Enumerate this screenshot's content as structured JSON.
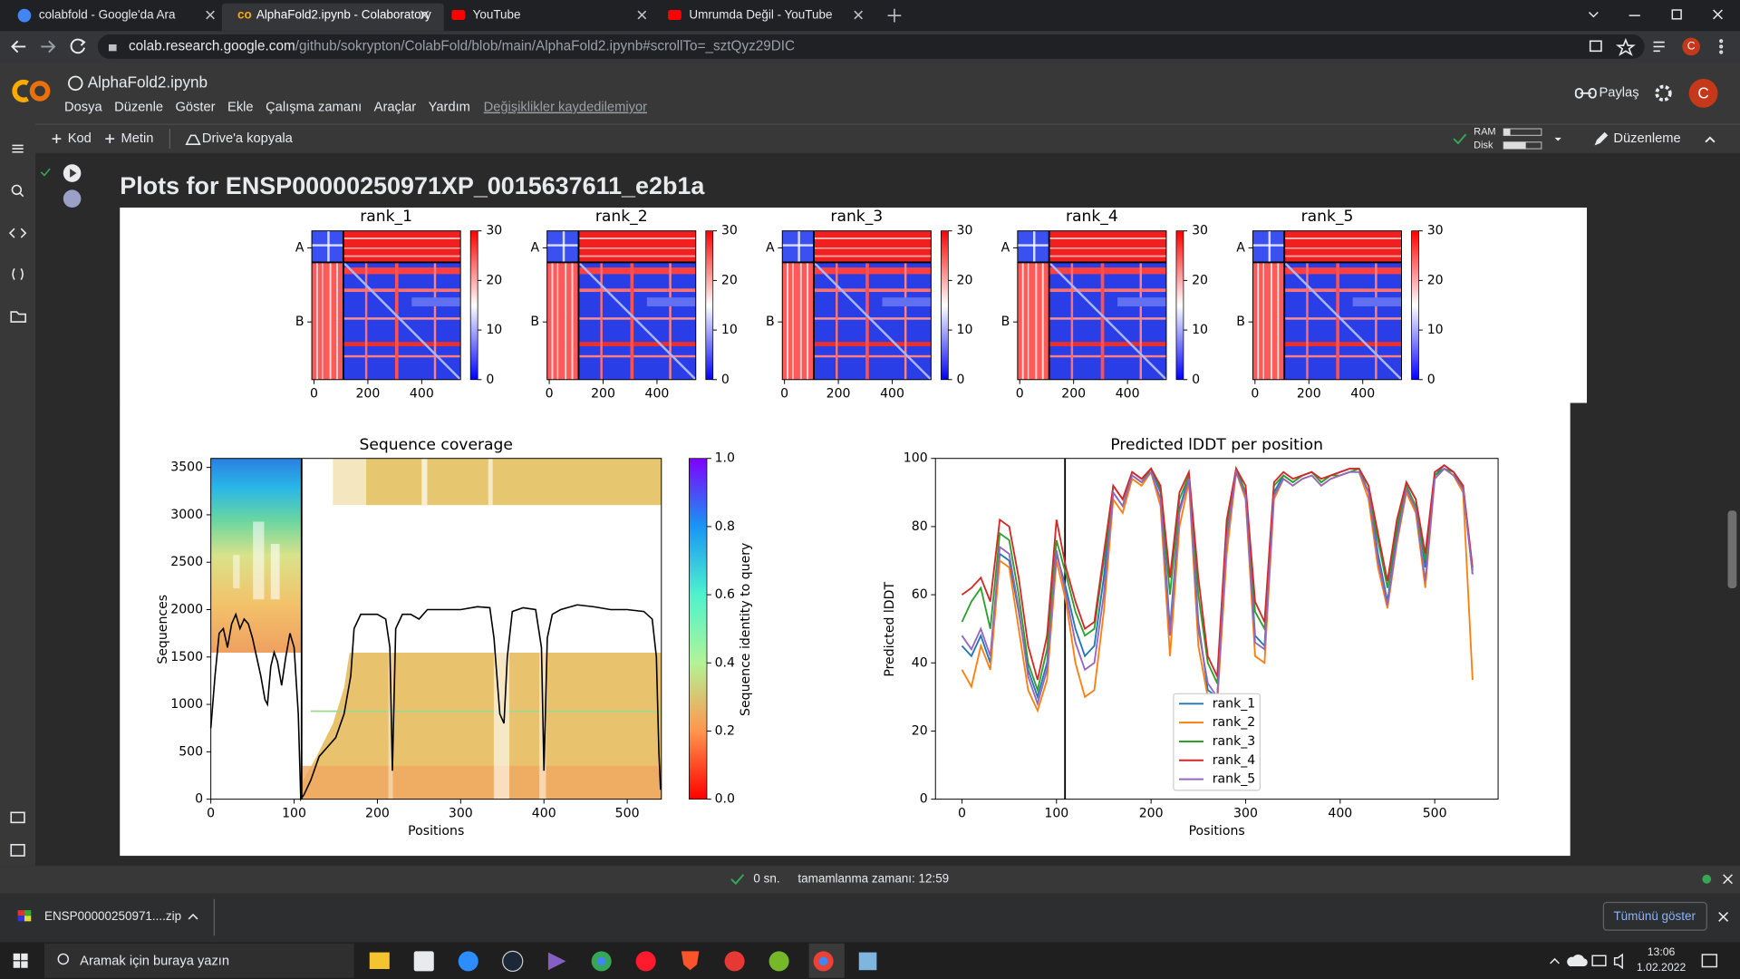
{
  "browser": {
    "tabs": [
      "colabfold - Google'da Ara",
      "AlphaFold2.ipynb - Colaboratory",
      "YouTube",
      "Umrumda Değil - YouTube"
    ],
    "url_host": "colab.research.google.com",
    "url_path": "/github/sokrypton/ColabFold/blob/main/AlphaFold2.ipynb#scrollTo=_sztQyz29DIC",
    "avatar": "C"
  },
  "colab": {
    "filename": "AlphaFold2.ipynb",
    "menu": [
      "Dosya",
      "Düzenle",
      "Göster",
      "Ekle",
      "Çalışma zamanı",
      "Araçlar",
      "Yardım"
    ],
    "unsaved_notice": "Değişiklikler kaydedilemiyor",
    "share": "Paylaş",
    "avatar": "C",
    "toolbar": {
      "code": "Kod",
      "text": "Metin",
      "copy_to_drive": "Drive'a kopyala",
      "ram": "RAM",
      "disk": "Disk",
      "editing": "Düzenleme"
    }
  },
  "output": {
    "title": "Plots for ENSP00000250971XP_0015637611_e2b1a",
    "pae": {
      "type": "heatmap",
      "titles": [
        "rank_1",
        "rank_2",
        "rank_3",
        "rank_4",
        "rank_5"
      ],
      "xlim": [
        -8,
        544
      ],
      "ylim": [
        -8,
        544
      ],
      "xticks": [
        0,
        200,
        400
      ],
      "yticks": [
        {
          "value": 55,
          "label": "A"
        },
        {
          "value": 330,
          "label": "B"
        }
      ],
      "chain_break": 109,
      "clim": [
        0,
        30
      ],
      "cbar_ticks": [
        0,
        10,
        20,
        30
      ]
    },
    "coverage": {
      "type": "coverage",
      "title": "Sequence coverage",
      "xlabel": "Positions",
      "ylabel": "Sequences",
      "cbar_label": "Sequence identity to query",
      "xlim": [
        0,
        541
      ],
      "ylim": [
        0,
        3595
      ],
      "xticks": [
        0,
        100,
        200,
        300,
        400,
        500
      ],
      "yticks": [
        0,
        500,
        1000,
        1500,
        2000,
        2500,
        3000,
        3500
      ],
      "clim": [
        0,
        1
      ],
      "cbar_ticks": [
        {
          "value": 0,
          "label": "0.0"
        },
        0.2,
        0.4,
        0.6,
        0.8,
        {
          "value": 1,
          "label": "1.0"
        }
      ],
      "chain_break": 109,
      "x": [
        0,
        5,
        10,
        15,
        20,
        25,
        30,
        35,
        40,
        45,
        50,
        55,
        60,
        65,
        68,
        72,
        76,
        80,
        85,
        90,
        95,
        100,
        105,
        108,
        112,
        120,
        130,
        140,
        150,
        160,
        168,
        172,
        180,
        190,
        200,
        210,
        215,
        218,
        222,
        230,
        240,
        250,
        260,
        270,
        280,
        300,
        320,
        335,
        340,
        347,
        352,
        356,
        362,
        375,
        390,
        397,
        400,
        404,
        410,
        420,
        440,
        460,
        480,
        500,
        520,
        530,
        535,
        538,
        540
      ],
      "values": [
        750,
        1300,
        1750,
        1800,
        1600,
        1850,
        1950,
        1800,
        1900,
        1850,
        1700,
        1500,
        1300,
        1050,
        1000,
        1400,
        1550,
        1450,
        1200,
        1500,
        1750,
        1600,
        900,
        0,
        50,
        200,
        450,
        550,
        650,
        900,
        1300,
        1800,
        1950,
        1950,
        1950,
        1900,
        1600,
        300,
        1800,
        1950,
        1950,
        1900,
        2000,
        2000,
        2000,
        2000,
        2030,
        2020,
        1700,
        900,
        800,
        1500,
        1980,
        2020,
        2000,
        1600,
        300,
        1700,
        1950,
        2000,
        2050,
        2030,
        2000,
        2000,
        1980,
        1900,
        1500,
        500,
        100
      ]
    },
    "plddt": {
      "type": "line",
      "title": "Predicted lDDT per position",
      "xlabel": "Positions",
      "ylabel": "Predicted lDDT",
      "xlim": [
        -28,
        567
      ],
      "ylim": [
        0,
        100
      ],
      "xticks": [
        0,
        100,
        200,
        300,
        400,
        500
      ],
      "yticks": [
        0,
        20,
        40,
        60,
        80,
        100
      ],
      "chain_break": 109,
      "legend": "lower center",
      "x": [
        0,
        10,
        20,
        30,
        40,
        50,
        60,
        70,
        80,
        90,
        100,
        110,
        120,
        130,
        140,
        150,
        160,
        170,
        180,
        190,
        200,
        210,
        220,
        230,
        240,
        250,
        260,
        270,
        280,
        290,
        300,
        310,
        320,
        330,
        340,
        350,
        360,
        370,
        380,
        390,
        400,
        410,
        420,
        430,
        440,
        450,
        460,
        470,
        480,
        490,
        500,
        510,
        520,
        530,
        540
      ],
      "series": [
        {
          "name": "rank_1",
          "color": "#1f77b4",
          "values": [
            45,
            42,
            48,
            40,
            72,
            70,
            55,
            38,
            30,
            40,
            72,
            62,
            50,
            42,
            45,
            65,
            92,
            88,
            96,
            94,
            97,
            90,
            50,
            85,
            95,
            52,
            32,
            30,
            78,
            97,
            90,
            48,
            45,
            90,
            95,
            93,
            95,
            96,
            93,
            95,
            96,
            97,
            97,
            92,
            72,
            58,
            78,
            93,
            88,
            68,
            95,
            98,
            96,
            92,
            66
          ]
        },
        {
          "name": "rank_2",
          "color": "#ff7f0e",
          "values": [
            38,
            33,
            45,
            38,
            70,
            68,
            50,
            32,
            26,
            35,
            70,
            58,
            40,
            30,
            32,
            55,
            88,
            84,
            94,
            92,
            96,
            86,
            42,
            80,
            93,
            45,
            30,
            28,
            72,
            96,
            88,
            42,
            40,
            88,
            94,
            92,
            94,
            95,
            92,
            94,
            95,
            96,
            96,
            88,
            68,
            56,
            75,
            90,
            84,
            62,
            94,
            97,
            95,
            90,
            35
          ]
        },
        {
          "name": "rank_3",
          "color": "#2ca02c",
          "values": [
            52,
            58,
            62,
            50,
            78,
            76,
            60,
            40,
            32,
            44,
            76,
            66,
            55,
            48,
            50,
            70,
            90,
            86,
            95,
            93,
            97,
            91,
            60,
            88,
            95,
            60,
            40,
            34,
            80,
            97,
            90,
            55,
            50,
            92,
            95,
            93,
            95,
            96,
            93,
            95,
            95,
            96,
            97,
            90,
            76,
            62,
            80,
            92,
            86,
            70,
            95,
            97,
            96,
            91,
            67
          ]
        },
        {
          "name": "rank_4",
          "color": "#d62728",
          "values": [
            60,
            62,
            65,
            58,
            82,
            80,
            65,
            45,
            35,
            48,
            82,
            68,
            58,
            50,
            52,
            72,
            92,
            88,
            96,
            94,
            97,
            92,
            65,
            90,
            96,
            65,
            42,
            36,
            82,
            97,
            92,
            58,
            52,
            93,
            96,
            94,
            95,
            96,
            94,
            95,
            96,
            97,
            97,
            92,
            78,
            64,
            82,
            93,
            88,
            72,
            96,
            98,
            96,
            92,
            68
          ]
        },
        {
          "name": "rank_5",
          "color": "#9467bd",
          "values": [
            48,
            44,
            50,
            42,
            74,
            72,
            56,
            36,
            28,
            38,
            73,
            60,
            46,
            38,
            40,
            60,
            90,
            86,
            95,
            93,
            96,
            88,
            48,
            84,
            94,
            50,
            34,
            30,
            76,
            96,
            89,
            46,
            44,
            89,
            94,
            92,
            94,
            95,
            92,
            94,
            95,
            96,
            96,
            90,
            70,
            57,
            76,
            91,
            85,
            64,
            94,
            97,
            95,
            91,
            66
          ]
        }
      ]
    }
  },
  "status": {
    "elapsed": "0 sn.",
    "completed": "tamamlanma zamanı: 12:59"
  },
  "downloads": {
    "file": "ENSP00000250971....zip",
    "show_all": "Tümünü göster"
  },
  "taskbar": {
    "search": "Aramak için buraya yazın",
    "time": "13:06",
    "date": "1.02.2022"
  }
}
